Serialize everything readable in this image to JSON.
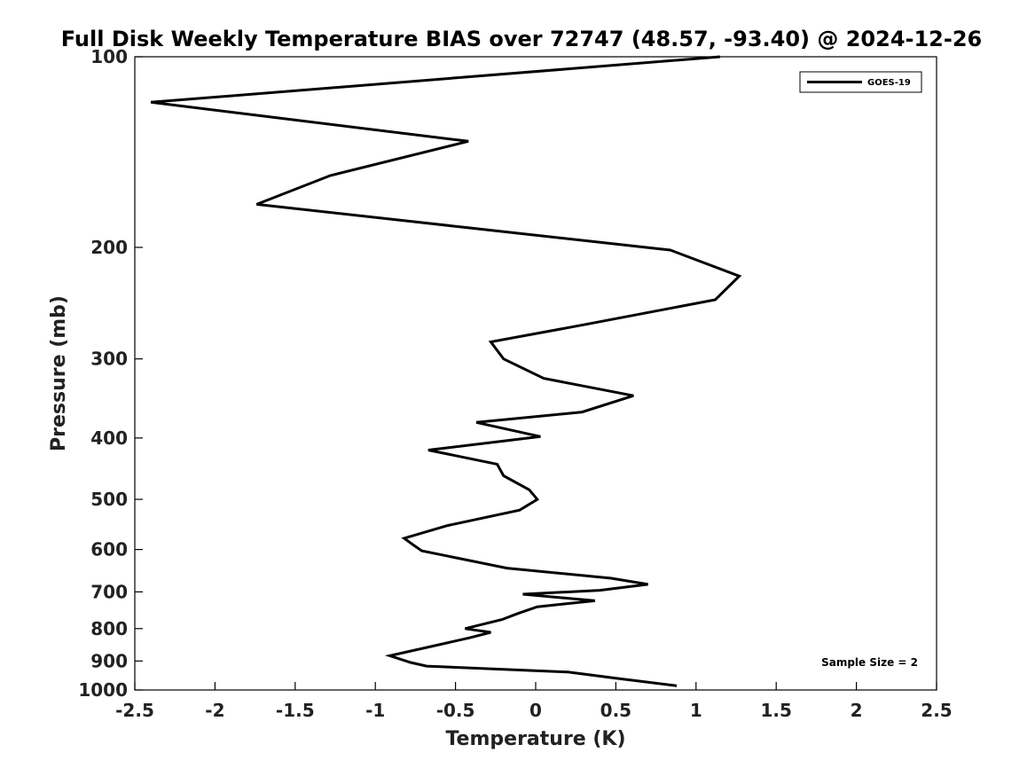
{
  "chart_data": {
    "type": "line",
    "title": "Full Disk Weekly Temperature BIAS over 72747 (48.57, -93.40) @ 2024-12-26",
    "xlabel": "Temperature (K)",
    "ylabel": "Pressure (mb)",
    "xlim": [
      -2.5,
      2.5
    ],
    "ylim": [
      100,
      1000
    ],
    "yscale": "log",
    "y_reversed": true,
    "grid": false,
    "x_ticks": [
      -2.5,
      -2,
      -1.5,
      -1,
      -0.5,
      0,
      0.5,
      1,
      1.5,
      2,
      2.5
    ],
    "x_tick_labels": [
      "-2.5",
      "-2",
      "-1.5",
      "-1",
      "-0.5",
      "0",
      "0.5",
      "1",
      "1.5",
      "2",
      "2.5"
    ],
    "y_ticks": [
      100,
      200,
      300,
      400,
      500,
      600,
      700,
      800,
      900,
      1000
    ],
    "y_tick_labels": [
      "100",
      "200",
      "300",
      "400",
      "500",
      "600",
      "700",
      "800",
      "900",
      "1000"
    ],
    "legend": {
      "position": "top-right",
      "entries": [
        "GOES-19"
      ]
    },
    "annotation": {
      "text": "Sample Size = 2",
      "position": "bottom-right"
    },
    "series": [
      {
        "name": "GOES-19",
        "color": "#000000",
        "points": [
          [
            1.15,
            100
          ],
          [
            -2.4,
            118
          ],
          [
            -0.42,
            136
          ],
          [
            -1.28,
            154
          ],
          [
            -1.74,
            171
          ],
          [
            0.84,
            202
          ],
          [
            1.27,
            222
          ],
          [
            1.12,
            242
          ],
          [
            0.3,
            265
          ],
          [
            -0.28,
            282
          ],
          [
            -0.2,
            300
          ],
          [
            0.05,
            322
          ],
          [
            0.61,
            343
          ],
          [
            0.29,
            364
          ],
          [
            -0.37,
            378
          ],
          [
            0.03,
            398
          ],
          [
            -0.67,
            418
          ],
          [
            -0.24,
            440
          ],
          [
            -0.2,
            459
          ],
          [
            -0.04,
            483
          ],
          [
            0.01,
            500
          ],
          [
            -0.1,
            520
          ],
          [
            -0.55,
            550
          ],
          [
            -0.82,
            576
          ],
          [
            -0.76,
            591
          ],
          [
            -0.71,
            603
          ],
          [
            -0.18,
            642
          ],
          [
            0.47,
            666
          ],
          [
            0.7,
            681
          ],
          [
            0.4,
            696
          ],
          [
            -0.08,
            706
          ],
          [
            0.37,
            723
          ],
          [
            0.01,
            739
          ],
          [
            -0.11,
            757
          ],
          [
            -0.21,
            774
          ],
          [
            -0.44,
            800
          ],
          [
            -0.28,
            811
          ],
          [
            -0.41,
            827
          ],
          [
            -0.91,
            883
          ],
          [
            -0.78,
            905
          ],
          [
            -0.68,
            917
          ],
          [
            0.2,
            937
          ],
          [
            0.5,
            958
          ],
          [
            0.88,
            985
          ]
        ]
      }
    ]
  }
}
